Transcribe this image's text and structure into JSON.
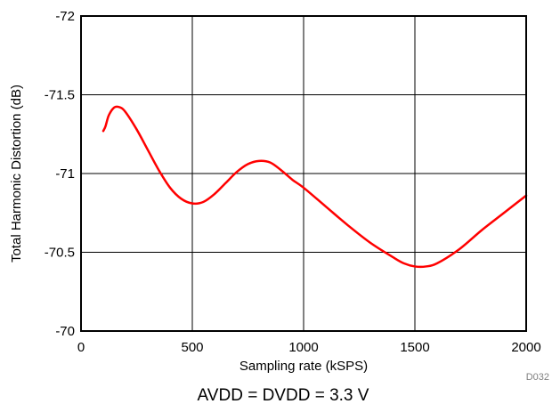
{
  "chart_data": {
    "type": "line",
    "xlabel": "Sampling rate (kSPS)",
    "ylabel": "Total Harmonic Distortion (dB)",
    "xlim": [
      0,
      2000
    ],
    "ylim": [
      -72,
      -70
    ],
    "y_axis_inverted": true,
    "grid": true,
    "x_ticks": [
      0,
      500,
      1000,
      1500,
      2000
    ],
    "y_ticks": [
      -72,
      -71.5,
      -71,
      -70.5,
      -70
    ],
    "x_tick_labels": [
      "0",
      "500",
      "1000",
      "1500",
      "2000"
    ],
    "y_tick_labels": [
      "-72",
      "-71.5",
      "-71",
      "-70.5",
      "-70"
    ],
    "series": [
      {
        "color": "#ff0000",
        "x": [
          100,
          110,
          125,
          150,
          175,
          200,
          250,
          300,
          350,
          400,
          450,
          500,
          550,
          600,
          650,
          700,
          750,
          800,
          850,
          900,
          950,
          1000,
          1100,
          1200,
          1300,
          1400,
          1450,
          1500,
          1550,
          1600,
          1700,
          1800,
          1900,
          2000
        ],
        "y": [
          -71.27,
          -71.3,
          -71.37,
          -71.42,
          -71.42,
          -71.39,
          -71.28,
          -71.15,
          -71.02,
          -70.91,
          -70.84,
          -70.81,
          -70.82,
          -70.87,
          -70.94,
          -71.01,
          -71.06,
          -71.08,
          -71.07,
          -71.02,
          -70.96,
          -70.91,
          -70.79,
          -70.67,
          -70.56,
          -70.47,
          -70.43,
          -70.41,
          -70.41,
          -70.43,
          -70.52,
          -70.64,
          -70.75,
          -70.86
        ]
      }
    ],
    "caption": "AVDD = DVDD = 3.3 V",
    "figure_id": "D032"
  }
}
